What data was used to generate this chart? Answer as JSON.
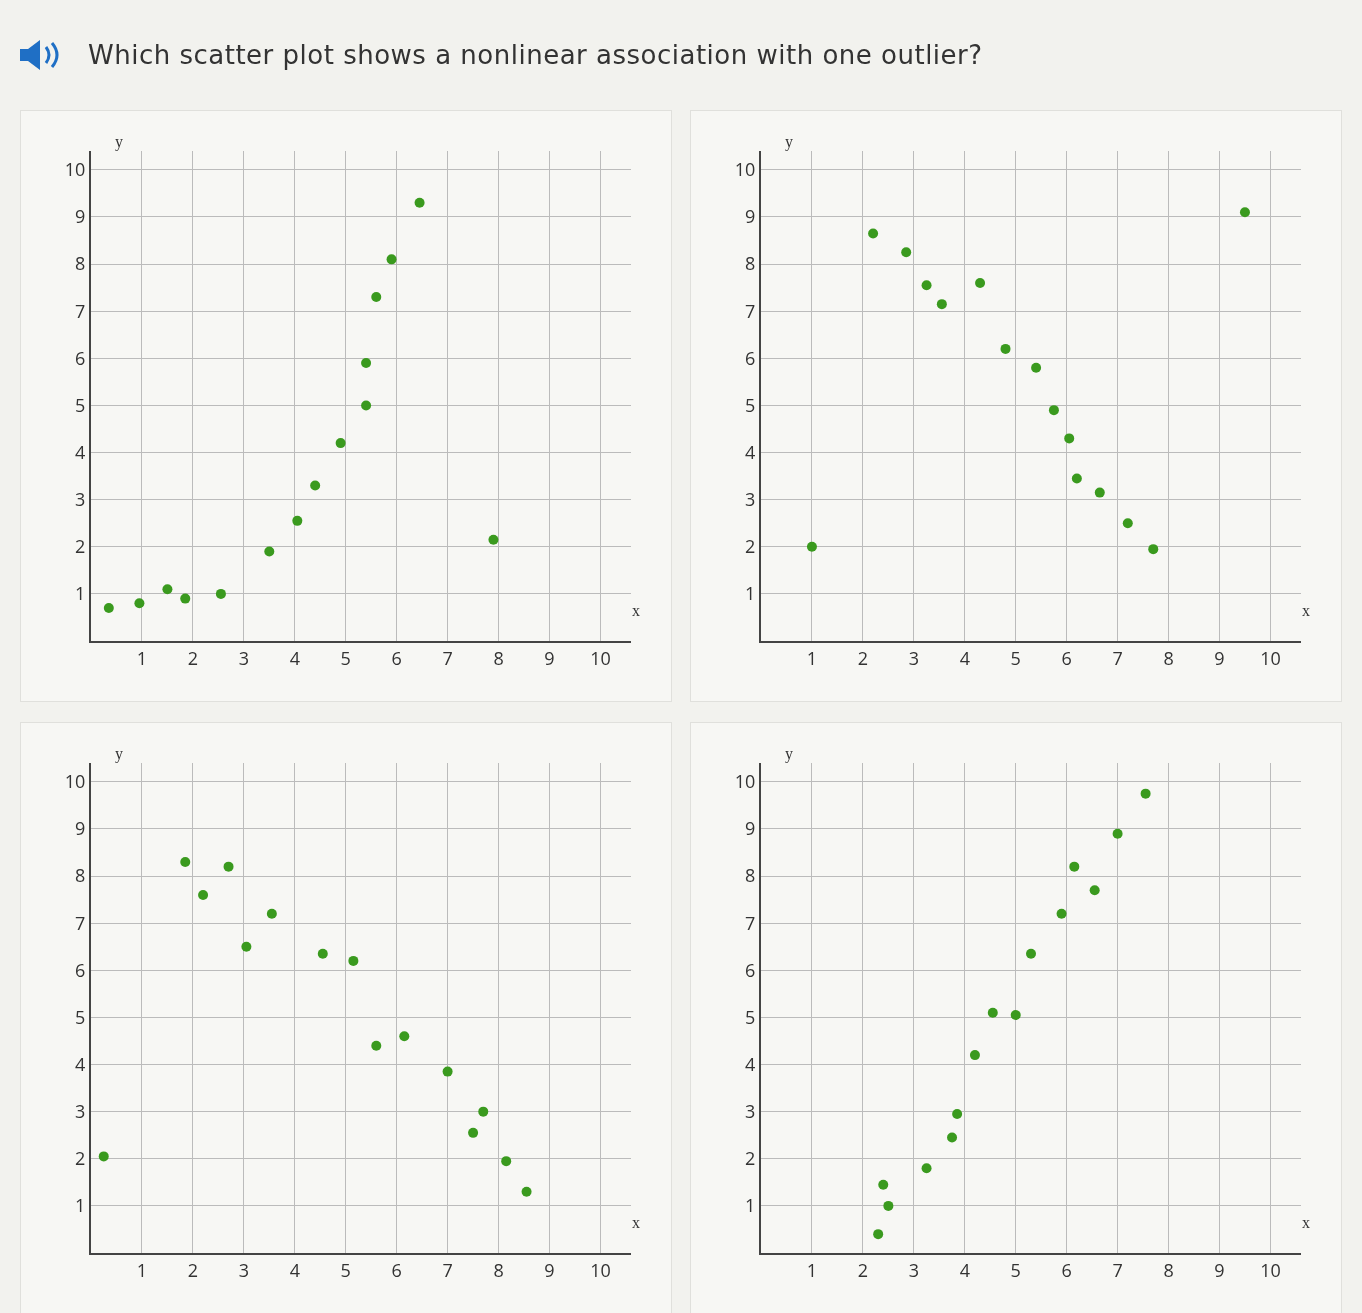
{
  "chart_data": [
    {
      "type": "scatter",
      "title": "Which scatter plot shows a nonlinear association with one outlier?",
      "xlabel": "x",
      "ylabel": "y",
      "color": "#3a9a1e",
      "marker": "circle",
      "grid": true,
      "xlim": [
        0,
        10.6
      ],
      "ylim": [
        0,
        10.4
      ],
      "xticks": [
        1,
        2,
        3,
        4,
        5,
        6,
        7,
        8,
        9,
        10
      ],
      "yticks": [
        1,
        2,
        3,
        4,
        5,
        6,
        7,
        8,
        9,
        10
      ],
      "x": [
        0.35,
        0.95,
        1.5,
        1.85,
        2.55,
        3.5,
        4.05,
        4.4,
        4.9,
        5.4,
        5.4,
        5.6,
        5.9,
        6.45,
        7.9
      ],
      "values": [
        0.7,
        0.8,
        1.1,
        0.9,
        1.0,
        1.9,
        2.55,
        3.3,
        4.2,
        5.0,
        5.9,
        7.3,
        8.1,
        9.3,
        2.15
      ]
    },
    {
      "type": "scatter",
      "xlabel": "x",
      "ylabel": "y",
      "color": "#3a9a1e",
      "marker": "circle",
      "grid": true,
      "xlim": [
        0,
        10.6
      ],
      "ylim": [
        0,
        10.4
      ],
      "xticks": [
        1,
        2,
        3,
        4,
        5,
        6,
        7,
        8,
        9,
        10
      ],
      "yticks": [
        1,
        2,
        3,
        4,
        5,
        6,
        7,
        8,
        9,
        10
      ],
      "x": [
        1.0,
        2.2,
        2.85,
        3.25,
        3.55,
        4.3,
        4.8,
        5.4,
        5.75,
        6.05,
        6.2,
        6.65,
        7.2,
        7.7,
        9.5
      ],
      "values": [
        2.0,
        8.65,
        8.25,
        7.55,
        7.15,
        7.6,
        6.2,
        5.8,
        4.9,
        4.3,
        3.45,
        3.15,
        2.5,
        1.95,
        9.1
      ]
    },
    {
      "type": "scatter",
      "xlabel": "x",
      "ylabel": "y",
      "color": "#3a9a1e",
      "marker": "circle",
      "grid": true,
      "xlim": [
        0,
        10.6
      ],
      "ylim": [
        0,
        10.4
      ],
      "xticks": [
        1,
        2,
        3,
        4,
        5,
        6,
        7,
        8,
        9,
        10
      ],
      "yticks": [
        1,
        2,
        3,
        4,
        5,
        6,
        7,
        8,
        9,
        10
      ],
      "x": [
        0.25,
        1.85,
        2.2,
        2.7,
        3.05,
        3.55,
        4.55,
        5.15,
        5.6,
        6.15,
        7.0,
        7.7,
        7.5,
        8.15,
        8.55
      ],
      "values": [
        2.05,
        8.3,
        7.6,
        8.2,
        6.5,
        7.2,
        6.35,
        6.2,
        4.4,
        4.6,
        3.85,
        3.0,
        2.55,
        1.95,
        1.3
      ]
    },
    {
      "type": "scatter",
      "xlabel": "x",
      "ylabel": "y",
      "color": "#3a9a1e",
      "marker": "circle",
      "grid": true,
      "xlim": [
        0,
        10.6
      ],
      "ylim": [
        0,
        10.4
      ],
      "xticks": [
        1,
        2,
        3,
        4,
        5,
        6,
        7,
        8,
        9,
        10
      ],
      "yticks": [
        1,
        2,
        3,
        4,
        5,
        6,
        7,
        8,
        9,
        10
      ],
      "x": [
        2.3,
        2.5,
        2.4,
        3.25,
        3.75,
        3.85,
        4.2,
        4.55,
        5.0,
        5.3,
        5.9,
        6.15,
        6.55,
        7.0,
        7.55
      ],
      "values": [
        0.4,
        1.0,
        1.45,
        1.8,
        2.45,
        2.95,
        4.2,
        5.1,
        5.05,
        6.35,
        7.2,
        8.2,
        7.7,
        8.9,
        9.75
      ]
    }
  ]
}
